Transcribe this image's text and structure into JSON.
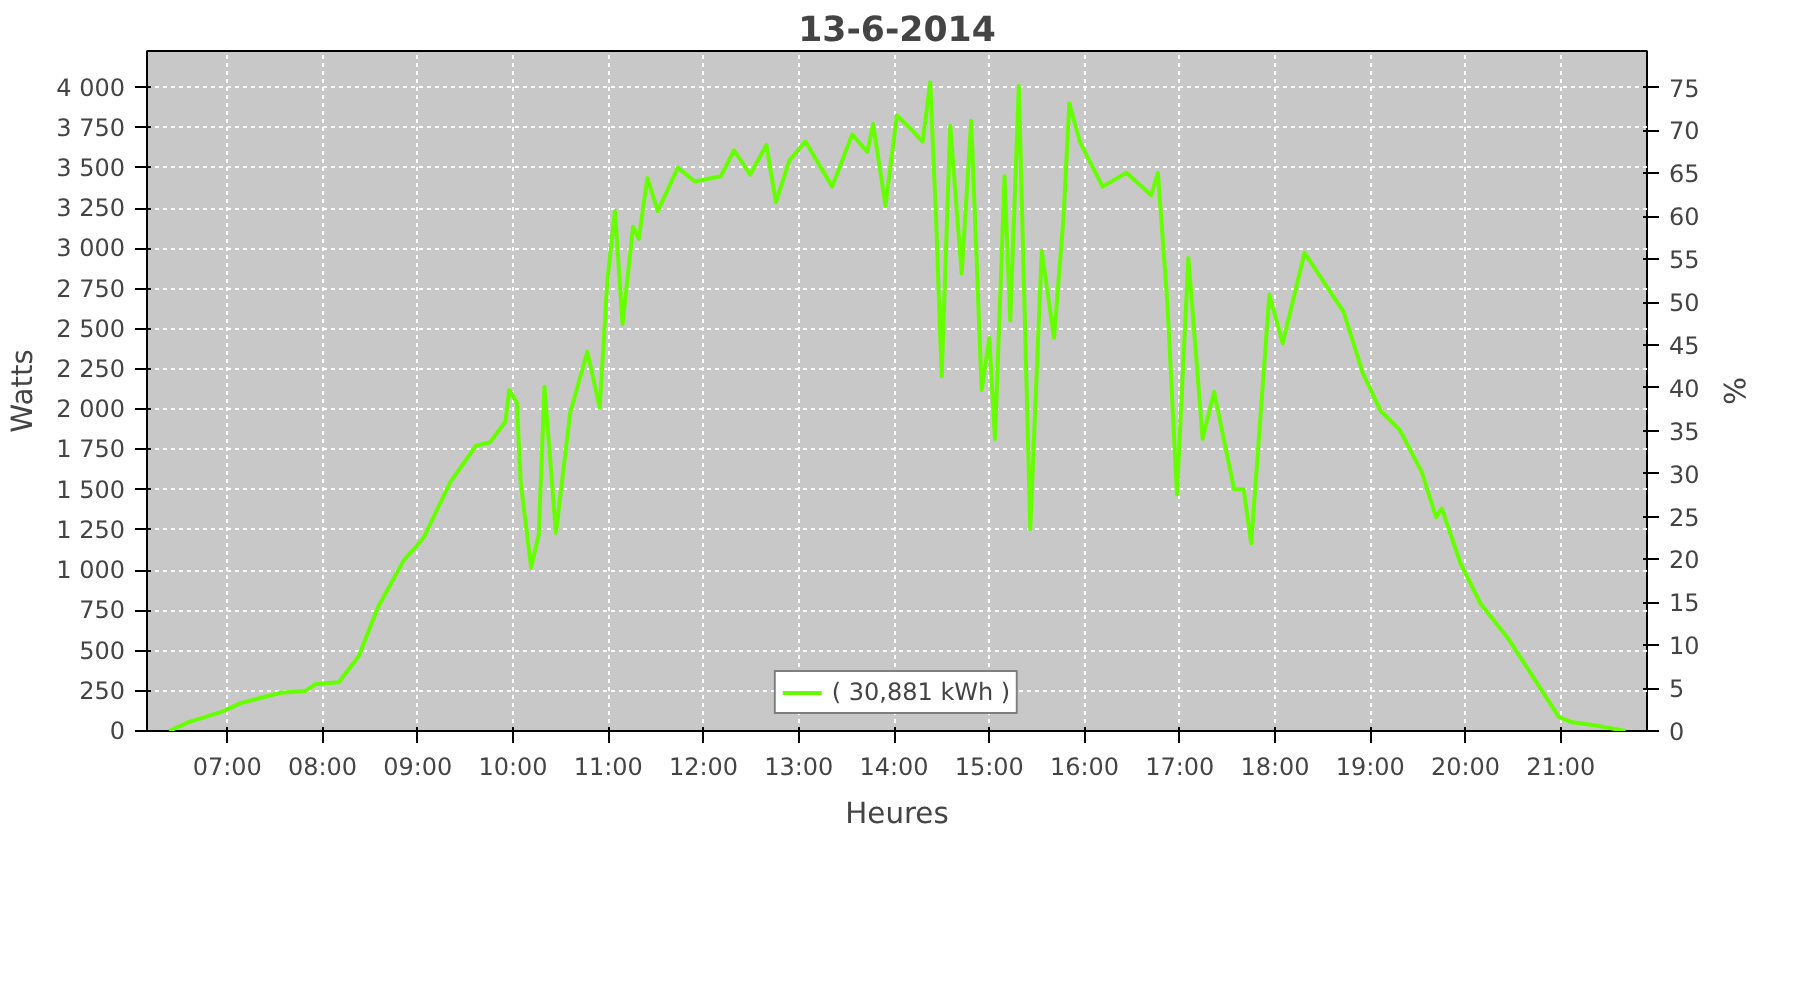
{
  "chart_data": {
    "type": "line",
    "title": "13-6-2014",
    "xlabel": "Heures",
    "ylabel": "Watts",
    "y2label": "%",
    "xlim": [
      6.157,
      21.905
    ],
    "ylim": [
      0,
      4227
    ],
    "y2lim": [
      0,
      79.26
    ],
    "xticks": [
      {
        "value": 7,
        "label": "07:00"
      },
      {
        "value": 8,
        "label": "08:00"
      },
      {
        "value": 9,
        "label": "09:00"
      },
      {
        "value": 10,
        "label": "10:00"
      },
      {
        "value": 11,
        "label": "11:00"
      },
      {
        "value": 12,
        "label": "12:00"
      },
      {
        "value": 13,
        "label": "13:00"
      },
      {
        "value": 14,
        "label": "14:00"
      },
      {
        "value": 15,
        "label": "15:00"
      },
      {
        "value": 16,
        "label": "16:00"
      },
      {
        "value": 17,
        "label": "17:00"
      },
      {
        "value": 18,
        "label": "18:00"
      },
      {
        "value": 19,
        "label": "19:00"
      },
      {
        "value": 20,
        "label": "20:00"
      },
      {
        "value": 21,
        "label": "21:00"
      }
    ],
    "yticks": [
      0,
      250,
      500,
      750,
      {
        "value": 1000,
        "label": "1 000"
      },
      {
        "value": 1250,
        "label": "1 250"
      },
      {
        "value": 1500,
        "label": "1 500"
      },
      {
        "value": 1750,
        "label": "1 750"
      },
      {
        "value": 2000,
        "label": "2 000"
      },
      {
        "value": 2250,
        "label": "2 250"
      },
      {
        "value": 2500,
        "label": "2 500"
      },
      {
        "value": 2750,
        "label": "2 750"
      },
      {
        "value": 3000,
        "label": "3 000"
      },
      {
        "value": 3250,
        "label": "3 250"
      },
      {
        "value": 3500,
        "label": "3 500"
      },
      {
        "value": 3750,
        "label": "3 750"
      },
      {
        "value": 4000,
        "label": "4 000"
      }
    ],
    "y2ticks": [
      0,
      5,
      10,
      15,
      20,
      25,
      30,
      35,
      40,
      45,
      50,
      55,
      60,
      65,
      70,
      75
    ],
    "grid": true,
    "legend": "bottom",
    "marker": "none",
    "line_style": "solid",
    "series": [
      {
        "name": "( 30,881 kWh )",
        "color": "#66ff00",
        "x": [
          6.39,
          6.6,
          6.94,
          7.14,
          7.56,
          7.82,
          7.93,
          8.17,
          8.38,
          8.58,
          8.85,
          9.06,
          9.34,
          9.61,
          9.76,
          9.92,
          9.96,
          10.04,
          10.08,
          10.19,
          10.27,
          10.33,
          10.39,
          10.45,
          10.6,
          10.78,
          10.91,
          10.99,
          11.07,
          11.15,
          11.26,
          11.32,
          11.41,
          11.52,
          11.73,
          11.91,
          12.18,
          12.32,
          12.49,
          12.66,
          12.76,
          12.9,
          13.07,
          13.35,
          13.56,
          13.72,
          13.78,
          13.91,
          14.03,
          14.18,
          14.3,
          14.38,
          14.44,
          14.5,
          14.59,
          14.71,
          14.81,
          14.92,
          15.0,
          15.06,
          15.16,
          15.22,
          15.31,
          15.43,
          15.55,
          15.68,
          15.78,
          15.84,
          15.95,
          16.19,
          16.44,
          16.7,
          16.77,
          16.87,
          16.97,
          17.09,
          17.24,
          17.36,
          17.57,
          17.67,
          17.75,
          17.94,
          18.08,
          18.31,
          18.49,
          18.72,
          18.92,
          19.11,
          19.31,
          19.54,
          19.69,
          19.75,
          19.95,
          20.16,
          20.45,
          20.71,
          20.98,
          21.12,
          21.39,
          21.68
        ],
        "values": [
          0,
          57,
          119,
          173,
          238,
          249,
          292,
          303,
          465,
          768,
          1059,
          1200,
          1546,
          1773,
          1795,
          1924,
          2119,
          2043,
          1546,
          1016,
          1221,
          2140,
          1686,
          1232,
          1978,
          2357,
          2011,
          2800,
          3232,
          2530,
          3135,
          3060,
          3438,
          3232,
          3502,
          3416,
          3448,
          3610,
          3459,
          3643,
          3286,
          3546,
          3664,
          3384,
          3708,
          3600,
          3773,
          3265,
          3827,
          3740,
          3664,
          4032,
          3200,
          2205,
          3762,
          2843,
          3794,
          2119,
          2443,
          1816,
          3448,
          2551,
          4010,
          1254,
          2984,
          2443,
          3200,
          3902,
          3664,
          3384,
          3470,
          3330,
          3470,
          2659,
          1470,
          2940,
          1816,
          2108,
          1503,
          1503,
          1167,
          2713,
          2410,
          2973,
          2811,
          2605,
          2227,
          1989,
          1870,
          1611,
          1330,
          1384,
          1038,
          789,
          573,
          335,
          86,
          54,
          32,
          0
        ]
      }
    ]
  }
}
